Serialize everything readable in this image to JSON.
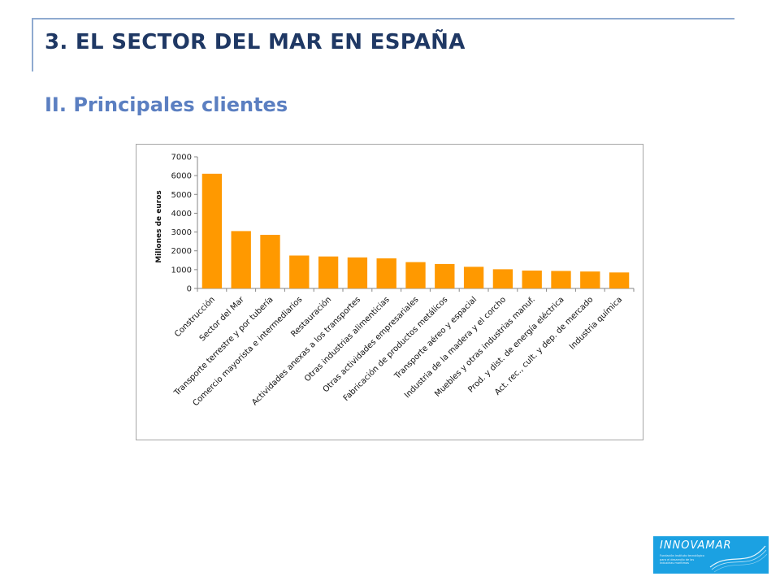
{
  "slide": {
    "title": "3. EL SECTOR DEL MAR EN ESPAÑA",
    "subtitle": "II. Principales clientes"
  },
  "logo": {
    "text": "INNOVAMAR",
    "tagline": "Fundación instituto tecnológico para el desarrollo de las industrias marítimas",
    "bg_color": "#1ba1e2"
  },
  "chart_data": {
    "type": "bar",
    "ylabel": "Millones de euros",
    "xlabel": "",
    "ylim": [
      0,
      7000
    ],
    "yticks": [
      0,
      1000,
      2000,
      3000,
      4000,
      5000,
      6000,
      7000
    ],
    "grid": false,
    "bar_color": "#ff9900",
    "categories": [
      "Construcción",
      "Sector del Mar",
      "Transporte terrestre y por tubería",
      "Comercio mayorista e intermediarios",
      "Restauración",
      "Actividades anexas a los transportes",
      "Otras industrias alimenticias",
      "Otras actividades empresariales",
      "Fabricación de productos metálicos",
      "Transporte aéreo y espacial",
      "Industria de la madera y el corcho",
      "Muebles y otras industrias manuf.",
      "Prod. y dist. de energía eléctrica",
      "Act. rec., cult. y dep. de mercado",
      "Industria química"
    ],
    "values": [
      6100,
      3050,
      2850,
      1750,
      1700,
      1650,
      1600,
      1400,
      1300,
      1150,
      1020,
      950,
      930,
      900,
      850
    ]
  }
}
